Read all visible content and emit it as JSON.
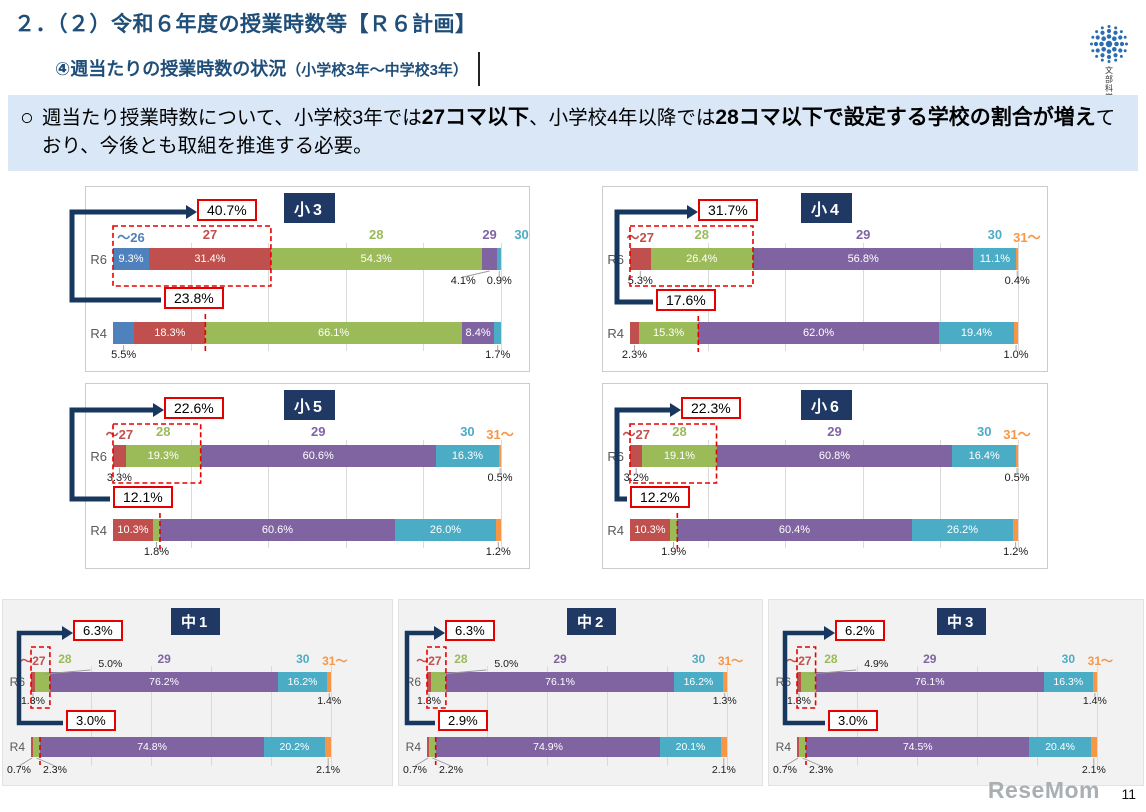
{
  "page": {
    "title": "２．（２）令和６年度の授業時数等【Ｒ６計画】",
    "subtitle": "④週当たりの授業時数の状況",
    "subtitle_note": "（小学校3年～中学校3年）",
    "logo_text": "文部科学省",
    "watermark": "ReseMom",
    "page_number": "11"
  },
  "notice": {
    "bullet": "○",
    "runs": [
      {
        "text": "週当たり授業時数について、小学校3年では",
        "bold": false
      },
      {
        "text": "27コマ以下",
        "bold": true
      },
      {
        "text": "、小学校4年以降では",
        "bold": false
      },
      {
        "text": "28コマ以下で設定する学校の割合が増え",
        "bold": true
      },
      {
        "text": "ており、今後とも取組を推進する必要。",
        "bold": false
      }
    ]
  },
  "colors": {
    "blue": "#4F81BD",
    "red": "#C0504D",
    "green": "#9BBB59",
    "purple": "#8064A2",
    "teal": "#4BACC6",
    "orange": "#F79646",
    "navy": "#17375E",
    "callout_red": "#E60000",
    "title_blue": "#1F4E79"
  },
  "chart_data": [
    {
      "id": "sho3",
      "title": "小3",
      "type": "bar",
      "subtype": "horizontal-stacked",
      "unit": "%",
      "x_range": [
        0,
        100
      ],
      "grid": true,
      "categories": [
        {
          "label": "～26",
          "color": "blue"
        },
        {
          "label": "27",
          "color": "red"
        },
        {
          "label": "28",
          "color": "green"
        },
        {
          "label": "29",
          "color": "purple"
        },
        {
          "label": "30",
          "color": "teal"
        }
      ],
      "rows": [
        {
          "name": "R6",
          "callout": 40.7,
          "segments": [
            {
              "v": 9.3,
              "color": "blue",
              "pos": "in"
            },
            {
              "v": 31.4,
              "color": "red",
              "pos": "in"
            },
            {
              "v": 54.3,
              "color": "green",
              "pos": "in"
            },
            {
              "v": 4.1,
              "color": "purple",
              "pos": "below"
            },
            {
              "v": 0.9,
              "color": "teal",
              "pos": "below"
            }
          ]
        },
        {
          "name": "R4",
          "callout": 23.8,
          "segments": [
            {
              "v": 5.5,
              "color": "blue",
              "pos": "below"
            },
            {
              "v": 18.3,
              "color": "red",
              "pos": "in"
            },
            {
              "v": 66.1,
              "color": "green",
              "pos": "in"
            },
            {
              "v": 8.4,
              "color": "purple",
              "pos": "in"
            },
            {
              "v": 1.7,
              "color": "teal",
              "pos": "below"
            }
          ]
        }
      ]
    },
    {
      "id": "sho4",
      "title": "小4",
      "type": "bar",
      "subtype": "horizontal-stacked",
      "unit": "%",
      "x_range": [
        0,
        100
      ],
      "grid": true,
      "categories": [
        {
          "label": "～27",
          "color": "red"
        },
        {
          "label": "28",
          "color": "green"
        },
        {
          "label": "29",
          "color": "purple"
        },
        {
          "label": "30",
          "color": "teal"
        },
        {
          "label": "31～",
          "color": "orange"
        }
      ],
      "rows": [
        {
          "name": "R6",
          "callout": 31.7,
          "segments": [
            {
              "v": 5.3,
              "color": "red",
              "pos": "below"
            },
            {
              "v": 26.4,
              "color": "green",
              "pos": "in"
            },
            {
              "v": 56.8,
              "color": "purple",
              "pos": "in"
            },
            {
              "v": 11.1,
              "color": "teal",
              "pos": "in"
            },
            {
              "v": 0.4,
              "color": "orange",
              "pos": "below"
            }
          ]
        },
        {
          "name": "R4",
          "callout": 17.6,
          "segments": [
            {
              "v": 2.3,
              "color": "red",
              "pos": "below"
            },
            {
              "v": 15.3,
              "color": "green",
              "pos": "in"
            },
            {
              "v": 62.0,
              "color": "purple",
              "pos": "in"
            },
            {
              "v": 19.4,
              "color": "teal",
              "pos": "in"
            },
            {
              "v": 1.0,
              "color": "orange",
              "pos": "below"
            }
          ]
        }
      ]
    },
    {
      "id": "sho5",
      "title": "小5",
      "type": "bar",
      "subtype": "horizontal-stacked",
      "unit": "%",
      "x_range": [
        0,
        100
      ],
      "grid": true,
      "categories": [
        {
          "label": "～27",
          "color": "red"
        },
        {
          "label": "28",
          "color": "green"
        },
        {
          "label": "29",
          "color": "purple"
        },
        {
          "label": "30",
          "color": "teal"
        },
        {
          "label": "31～",
          "color": "orange"
        }
      ],
      "rows": [
        {
          "name": "R6",
          "callout": 22.6,
          "segments": [
            {
              "v": 3.3,
              "color": "red",
              "pos": "below"
            },
            {
              "v": 19.3,
              "color": "green",
              "pos": "in"
            },
            {
              "v": 60.6,
              "color": "purple",
              "pos": "in"
            },
            {
              "v": 16.3,
              "color": "teal",
              "pos": "in"
            },
            {
              "v": 0.5,
              "color": "orange",
              "pos": "below"
            }
          ]
        },
        {
          "name": "R4",
          "callout": 12.1,
          "segments": [
            {
              "v": 10.3,
              "color": "red",
              "pos": "in"
            },
            {
              "v": 1.8,
              "color": "green",
              "pos": "below"
            },
            {
              "v": 60.6,
              "color": "purple",
              "pos": "in"
            },
            {
              "v": 26.0,
              "color": "teal",
              "pos": "in"
            },
            {
              "v": 1.2,
              "color": "orange",
              "pos": "below"
            }
          ]
        }
      ]
    },
    {
      "id": "sho6",
      "title": "小6",
      "type": "bar",
      "subtype": "horizontal-stacked",
      "unit": "%",
      "x_range": [
        0,
        100
      ],
      "grid": true,
      "categories": [
        {
          "label": "～27",
          "color": "red"
        },
        {
          "label": "28",
          "color": "green"
        },
        {
          "label": "29",
          "color": "purple"
        },
        {
          "label": "30",
          "color": "teal"
        },
        {
          "label": "31～",
          "color": "orange"
        }
      ],
      "rows": [
        {
          "name": "R6",
          "callout": 22.3,
          "segments": [
            {
              "v": 3.2,
              "color": "red",
              "pos": "below"
            },
            {
              "v": 19.1,
              "color": "green",
              "pos": "in"
            },
            {
              "v": 60.8,
              "color": "purple",
              "pos": "in"
            },
            {
              "v": 16.4,
              "color": "teal",
              "pos": "in"
            },
            {
              "v": 0.5,
              "color": "orange",
              "pos": "below"
            }
          ]
        },
        {
          "name": "R4",
          "callout": 12.2,
          "segments": [
            {
              "v": 10.3,
              "color": "red",
              "pos": "in"
            },
            {
              "v": 1.9,
              "color": "green",
              "pos": "below"
            },
            {
              "v": 60.4,
              "color": "purple",
              "pos": "in"
            },
            {
              "v": 26.2,
              "color": "teal",
              "pos": "in"
            },
            {
              "v": 1.2,
              "color": "orange",
              "pos": "below"
            }
          ]
        }
      ]
    },
    {
      "id": "chu1",
      "title": "中1",
      "type": "bar",
      "subtype": "horizontal-stacked",
      "unit": "%",
      "x_range": [
        0,
        100
      ],
      "grid": true,
      "categories": [
        {
          "label": "～27",
          "color": "red"
        },
        {
          "label": "28",
          "color": "green"
        },
        {
          "label": "29",
          "color": "purple"
        },
        {
          "label": "30",
          "color": "teal"
        },
        {
          "label": "31～",
          "color": "orange"
        }
      ],
      "rows": [
        {
          "name": "R6",
          "callout": 6.3,
          "segments": [
            {
              "v": 1.3,
              "color": "red",
              "pos": "below"
            },
            {
              "v": 5.0,
              "color": "green",
              "pos": "above"
            },
            {
              "v": 76.2,
              "color": "purple",
              "pos": "in"
            },
            {
              "v": 16.2,
              "color": "teal",
              "pos": "in"
            },
            {
              "v": 1.4,
              "color": "orange",
              "pos": "below"
            }
          ]
        },
        {
          "name": "R4",
          "callout": 3.0,
          "segments": [
            {
              "v": 0.7,
              "color": "red",
              "pos": "below"
            },
            {
              "v": 2.3,
              "color": "green",
              "pos": "below"
            },
            {
              "v": 74.8,
              "color": "purple",
              "pos": "in"
            },
            {
              "v": 20.2,
              "color": "teal",
              "pos": "in"
            },
            {
              "v": 2.1,
              "color": "orange",
              "pos": "below"
            }
          ]
        }
      ]
    },
    {
      "id": "chu2",
      "title": "中2",
      "type": "bar",
      "subtype": "horizontal-stacked",
      "unit": "%",
      "x_range": [
        0,
        100
      ],
      "grid": true,
      "categories": [
        {
          "label": "～27",
          "color": "red"
        },
        {
          "label": "28",
          "color": "green"
        },
        {
          "label": "29",
          "color": "purple"
        },
        {
          "label": "30",
          "color": "teal"
        },
        {
          "label": "31～",
          "color": "orange"
        }
      ],
      "rows": [
        {
          "name": "R6",
          "callout": 6.3,
          "segments": [
            {
              "v": 1.3,
              "color": "red",
              "pos": "below"
            },
            {
              "v": 5.0,
              "color": "green",
              "pos": "above"
            },
            {
              "v": 76.1,
              "color": "purple",
              "pos": "in"
            },
            {
              "v": 16.2,
              "color": "teal",
              "pos": "in"
            },
            {
              "v": 1.3,
              "color": "orange",
              "pos": "below"
            }
          ]
        },
        {
          "name": "R4",
          "callout": 2.9,
          "segments": [
            {
              "v": 0.7,
              "color": "red",
              "pos": "below"
            },
            {
              "v": 2.2,
              "color": "green",
              "pos": "below"
            },
            {
              "v": 74.9,
              "color": "purple",
              "pos": "in"
            },
            {
              "v": 20.1,
              "color": "teal",
              "pos": "in"
            },
            {
              "v": 2.1,
              "color": "orange",
              "pos": "below"
            }
          ]
        }
      ]
    },
    {
      "id": "chu3",
      "title": "中3",
      "type": "bar",
      "subtype": "horizontal-stacked",
      "unit": "%",
      "x_range": [
        0,
        100
      ],
      "grid": true,
      "categories": [
        {
          "label": "～27",
          "color": "red"
        },
        {
          "label": "28",
          "color": "green"
        },
        {
          "label": "29",
          "color": "purple"
        },
        {
          "label": "30",
          "color": "teal"
        },
        {
          "label": "31～",
          "color": "orange"
        }
      ],
      "rows": [
        {
          "name": "R6",
          "callout": 6.2,
          "segments": [
            {
              "v": 1.3,
              "color": "red",
              "pos": "below"
            },
            {
              "v": 4.9,
              "color": "green",
              "pos": "above"
            },
            {
              "v": 76.1,
              "color": "purple",
              "pos": "in"
            },
            {
              "v": 16.3,
              "color": "teal",
              "pos": "in"
            },
            {
              "v": 1.4,
              "color": "orange",
              "pos": "below"
            }
          ]
        },
        {
          "name": "R4",
          "callout": 3.0,
          "segments": [
            {
              "v": 0.7,
              "color": "red",
              "pos": "below"
            },
            {
              "v": 2.3,
              "color": "green",
              "pos": "below"
            },
            {
              "v": 74.5,
              "color": "purple",
              "pos": "in"
            },
            {
              "v": 20.4,
              "color": "teal",
              "pos": "in"
            },
            {
              "v": 2.1,
              "color": "orange",
              "pos": "below"
            }
          ]
        }
      ]
    }
  ]
}
